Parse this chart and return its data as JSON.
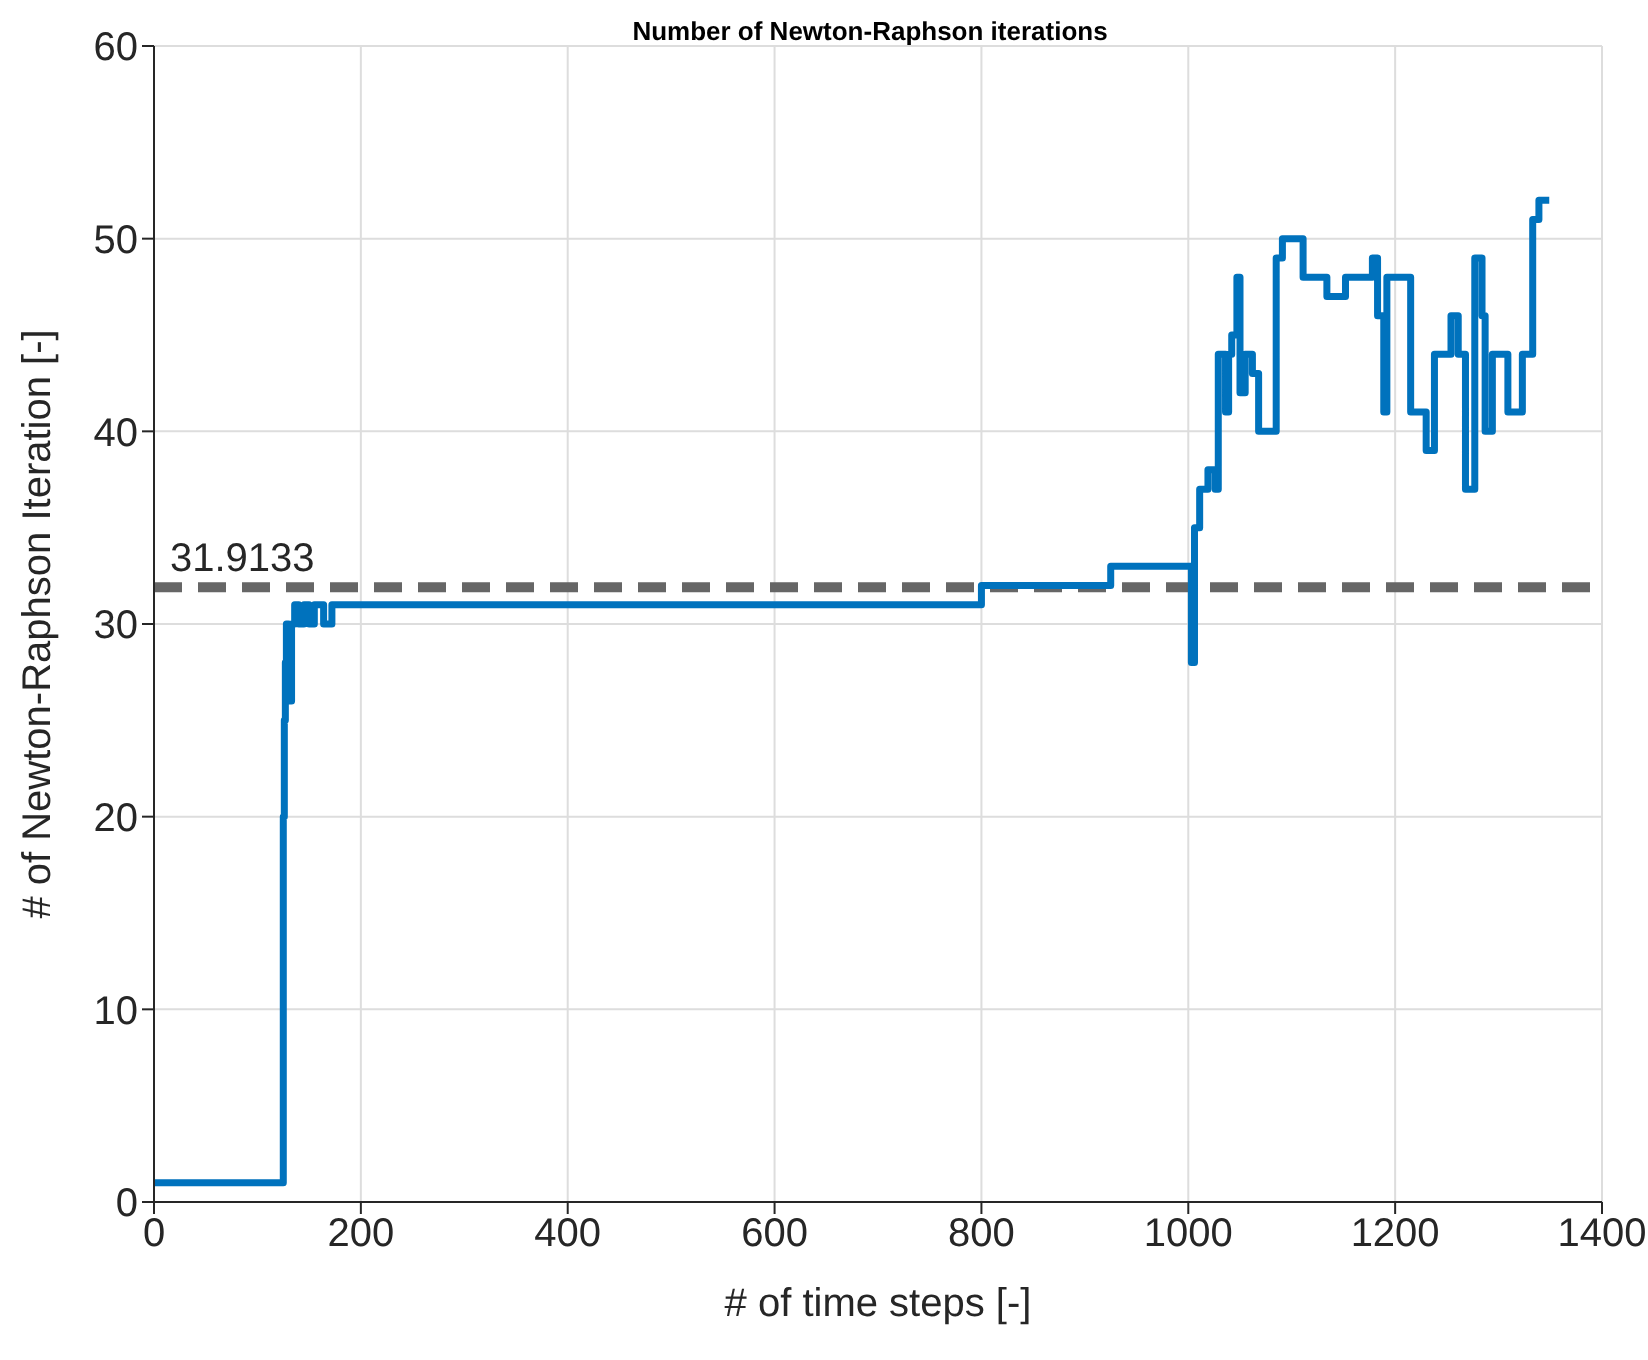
{
  "chart_data": {
    "type": "step",
    "title": "Number of Newton-Raphson iterations",
    "xlabel": "# of time steps [-]",
    "ylabel": "# of Newton-Raphson Iteration [-]",
    "xlim": [
      0,
      1400
    ],
    "xticks": [
      0,
      200,
      400,
      600,
      800,
      1000,
      1200,
      1400
    ],
    "ylim": [
      0,
      60
    ],
    "yticks": [
      0,
      10,
      20,
      30,
      40,
      50,
      60
    ],
    "grid": true,
    "marker": "none",
    "line_style": "solid",
    "series": [
      {
        "color": "#0072bd",
        "x": [
          0,
          125,
          126,
          127,
          128,
          130,
          133,
          136,
          140,
          145,
          150,
          155,
          160,
          164,
          172,
          180,
          790,
          800,
          925,
          1000,
          1003,
          1006,
          1011,
          1019,
          1026,
          1029,
          1036,
          1039,
          1042,
          1047,
          1050,
          1055,
          1062,
          1068,
          1076,
          1085,
          1091,
          1101,
          1111,
          1130,
          1134,
          1150,
          1152,
          1176,
          1178,
          1183,
          1189,
          1192,
          1202,
          1215,
          1225,
          1230,
          1238,
          1248,
          1254,
          1261,
          1268,
          1277,
          1284,
          1287,
          1294,
          1304,
          1309,
          1315,
          1323,
          1330,
          1333,
          1339,
          1349
        ],
        "values": [
          1,
          20,
          25,
          28,
          30,
          26,
          30,
          31,
          30,
          31,
          30,
          31,
          31,
          30,
          31,
          31,
          31,
          32,
          33,
          33,
          28,
          35,
          37,
          38,
          37,
          44,
          41,
          44,
          45,
          48,
          42,
          44,
          43,
          40,
          40,
          49,
          50,
          50,
          48,
          48,
          47,
          47,
          48,
          48,
          49,
          46,
          41,
          48,
          48,
          41,
          41,
          39,
          44,
          44,
          46,
          44,
          37,
          49,
          46,
          40,
          44,
          44,
          41,
          41,
          44,
          44,
          51,
          52,
          52
        ]
      }
    ],
    "ref_lines": [
      {
        "axis": "y",
        "value": 31.9133,
        "label": "31.9133",
        "color": "#666666",
        "line_style": "dashed"
      }
    ]
  }
}
